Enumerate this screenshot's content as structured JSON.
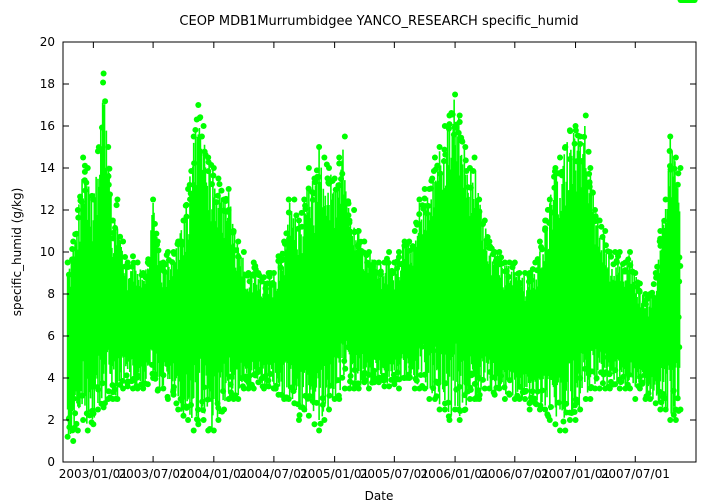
{
  "chart_data": {
    "type": "scatter",
    "title": "CEOP MDB1Murrumbidgee YANCO_RESEARCH  specific_humid",
    "xlabel": "Date",
    "ylabel": "specific_humid (g/kg)",
    "xlim": [
      "2002/10/01",
      "2008/01/01"
    ],
    "ylim": [
      0,
      20
    ],
    "y_ticks": [
      0,
      2,
      4,
      6,
      8,
      10,
      12,
      14,
      16,
      18,
      20
    ],
    "x_ticks": [
      {
        "date": "2003/01/01",
        "label": "2003/01/01"
      },
      {
        "date": "2003/07/01",
        "label": "2003/07/01"
      },
      {
        "date": "2004/01/01",
        "label": "2004/01/01"
      },
      {
        "date": "2004/07/01",
        "label": "2004/07/01"
      },
      {
        "date": "2005/01/01",
        "label": "2005/01/01"
      },
      {
        "date": "2005/07/01",
        "label": "2005/07/01"
      },
      {
        "date": "2006/01/01",
        "label": "2006/01/01"
      },
      {
        "date": "2006/07/01",
        "label": "2006/07/01"
      },
      {
        "date": "2007/01/01",
        "label": "2007/01/01"
      },
      {
        "date": "2007/07/01",
        "label": "2007/07/01"
      }
    ],
    "grid": false,
    "legend": "none",
    "series_color": "#00ff00",
    "series": [
      {
        "x": [
          "2002/10/15",
          "2002/11/01",
          "2002/11/15",
          "2002/12/01",
          "2002/12/15",
          "2003/01/01",
          "2003/01/15",
          "2003/02/01",
          "2003/02/15",
          "2003/03/01",
          "2003/03/15",
          "2003/04/01",
          "2003/04/15",
          "2003/05/01",
          "2003/05/15",
          "2003/06/01",
          "2003/06/15",
          "2003/07/01",
          "2003/07/15",
          "2003/08/01",
          "2003/08/15",
          "2003/09/01",
          "2003/09/15",
          "2003/10/01",
          "2003/10/15",
          "2003/11/01",
          "2003/11/15",
          "2003/12/01",
          "2003/12/15",
          "2004/01/01",
          "2004/01/15",
          "2004/02/01",
          "2004/02/15",
          "2004/03/01",
          "2004/03/15",
          "2004/04/01",
          "2004/04/15",
          "2004/05/01",
          "2004/05/15",
          "2004/06/01",
          "2004/06/15",
          "2004/07/01",
          "2004/07/15",
          "2004/08/01",
          "2004/08/15",
          "2004/09/01",
          "2004/09/15",
          "2004/10/01",
          "2004/10/15",
          "2004/11/01",
          "2004/11/15",
          "2004/12/01",
          "2004/12/15",
          "2005/01/01",
          "2005/01/15",
          "2005/02/01",
          "2005/02/15",
          "2005/03/01",
          "2005/03/15",
          "2005/04/01",
          "2005/04/15",
          "2005/05/01",
          "2005/05/15",
          "2005/06/01",
          "2005/06/15",
          "2005/07/01",
          "2005/07/15",
          "2005/08/01",
          "2005/08/15",
          "2005/09/01",
          "2005/09/15",
          "2005/10/01",
          "2005/10/15",
          "2005/11/01",
          "2005/11/15",
          "2005/12/01",
          "2005/12/15",
          "2006/01/01",
          "2006/01/15",
          "2006/02/01",
          "2006/02/15",
          "2006/03/01",
          "2006/03/15",
          "2006/04/01",
          "2006/04/15",
          "2006/05/01",
          "2006/05/15",
          "2006/06/01",
          "2006/06/15",
          "2006/07/01",
          "2006/07/15",
          "2006/08/01",
          "2006/08/15",
          "2006/09/01",
          "2006/09/15",
          "2006/10/01",
          "2006/10/15",
          "2006/11/01",
          "2006/11/15",
          "2006/12/01",
          "2006/12/15",
          "2007/01/01",
          "2007/01/15",
          "2007/02/01",
          "2007/02/15",
          "2007/03/01",
          "2007/03/15",
          "2007/04/01",
          "2007/04/15",
          "2007/05/01",
          "2007/05/15",
          "2007/06/01",
          "2007/06/15",
          "2007/07/01",
          "2007/07/15",
          "2007/08/01",
          "2007/08/15",
          "2007/09/01",
          "2007/09/15",
          "2007/10/01",
          "2007/10/15",
          "2007/11/01",
          "2007/11/15",
          "2007/12/01",
          "2007/12/15"
        ],
        "y_min": [
          1.2,
          1.0,
          1.5,
          2.0,
          1.5,
          1.8,
          2.5,
          2.6,
          3.0,
          3.0,
          3.0,
          3.5,
          3.6,
          3.5,
          3.5,
          3.5,
          3.7,
          4.0,
          3.4,
          3.5,
          3.0,
          3.2,
          2.5,
          2.2,
          2.0,
          1.5,
          1.8,
          2.0,
          1.5,
          1.5,
          2.0,
          2.5,
          3.0,
          3.0,
          3.0,
          3.5,
          3.5,
          3.5,
          3.8,
          3.5,
          3.6,
          3.5,
          3.2,
          3.0,
          3.0,
          2.8,
          2.0,
          2.5,
          2.2,
          1.8,
          1.5,
          2.0,
          2.5,
          3.0,
          3.0,
          3.5,
          3.5,
          3.5,
          3.5,
          3.8,
          3.5,
          3.8,
          3.8,
          3.6,
          3.6,
          3.7,
          3.5,
          4.0,
          4.0,
          3.5,
          3.5,
          3.5,
          3.0,
          3.0,
          2.5,
          2.5,
          2.0,
          2.5,
          2.0,
          2.5,
          3.0,
          3.0,
          3.0,
          3.5,
          3.5,
          3.2,
          3.5,
          3.0,
          3.2,
          3.0,
          3.0,
          3.0,
          2.5,
          2.8,
          2.5,
          2.5,
          2.0,
          1.8,
          1.5,
          1.5,
          2.0,
          2.0,
          2.5,
          3.0,
          3.0,
          3.5,
          3.5,
          3.5,
          3.5,
          3.7,
          3.5,
          3.5,
          3.5,
          3.0,
          3.5,
          3.0,
          3.0,
          2.8,
          2.5,
          2.5,
          2.0,
          2.0,
          2.5
        ],
        "y_max": [
          9.5,
          10.5,
          12.0,
          14.5,
          14.0,
          12.5,
          14.8,
          18.5,
          15.0,
          11.5,
          12.5,
          10.5,
          9.5,
          9.8,
          9.5,
          9.0,
          9.5,
          12.5,
          10.5,
          9.5,
          10.0,
          10.0,
          10.5,
          11.5,
          13.0,
          15.5,
          17.0,
          16.0,
          14.5,
          14.0,
          13.5,
          12.5,
          13.0,
          11.0,
          10.5,
          10.0,
          9.0,
          9.5,
          9.0,
          8.8,
          9.0,
          9.0,
          9.8,
          10.5,
          12.5,
          12.5,
          11.5,
          12.5,
          14.0,
          13.5,
          15.0,
          14.5,
          14.0,
          13.5,
          14.5,
          15.5,
          11.5,
          12.0,
          11.0,
          10.5,
          10.0,
          9.5,
          9.5,
          9.5,
          10.0,
          9.5,
          10.0,
          10.5,
          10.5,
          11.0,
          12.5,
          13.0,
          13.0,
          14.5,
          15.0,
          16.0,
          16.5,
          17.5,
          16.5,
          15.0,
          14.0,
          14.5,
          12.5,
          11.5,
          10.5,
          10.0,
          10.0,
          9.5,
          9.5,
          9.5,
          9.0,
          9.0,
          9.0,
          9.5,
          10.5,
          11.5,
          12.5,
          14.0,
          14.5,
          15.0,
          15.8,
          16.0,
          15.5,
          16.5,
          14.0,
          12.0,
          11.5,
          11.0,
          10.0,
          10.0,
          10.0,
          9.5,
          10.0,
          9.0,
          8.5,
          8.0,
          8.0,
          9.0,
          11.0,
          12.5,
          15.5,
          14.5,
          14.0
        ]
      }
    ]
  }
}
